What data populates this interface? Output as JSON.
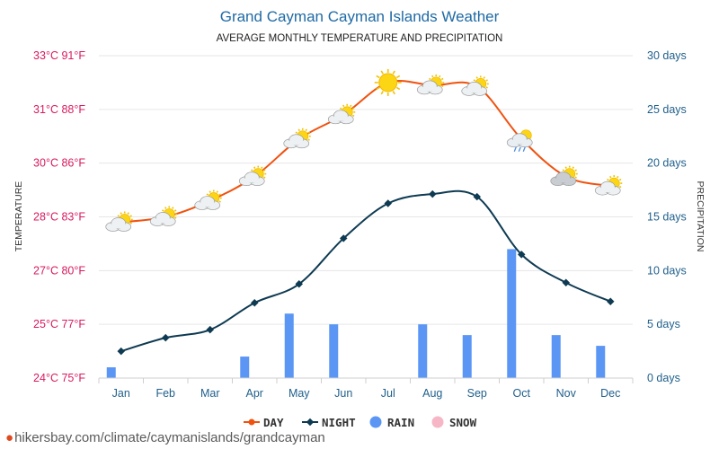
{
  "chart_data": {
    "type": "line",
    "title": "Grand Cayman Cayman Islands Weather",
    "subtitle": "AVERAGE MONTHLY TEMPERATURE AND PRECIPITATION",
    "categories": [
      "Jan",
      "Feb",
      "Mar",
      "Apr",
      "May",
      "Jun",
      "Jul",
      "Aug",
      "Sep",
      "Oct",
      "Nov",
      "Dec"
    ],
    "y_left": {
      "label": "TEMPERATURE",
      "ticks": [
        "24°C 75°F",
        "25°C 77°F",
        "27°C 80°F",
        "28°C 83°F",
        "30°C 86°F",
        "31°C 88°F",
        "33°C 91°F"
      ],
      "range_c": [
        24,
        33
      ]
    },
    "y_right": {
      "label": "PRECIPITATION",
      "ticks": [
        "0 days",
        "5 days",
        "10 days",
        "15 days",
        "20 days",
        "25 days",
        "30 days"
      ],
      "range": [
        0,
        30
      ]
    },
    "series": [
      {
        "name": "DAY",
        "color": "#f0520f",
        "values": [
          27.9,
          28.0,
          28.6,
          29.5,
          30.45,
          30.9,
          32.0,
          31.9,
          31.85,
          30.45,
          29.5,
          29.15
        ]
      },
      {
        "name": "NIGHT",
        "color": "#0e3a52",
        "values": [
          24.5,
          24.75,
          24.9,
          25.8,
          26.5,
          27.6,
          28.5,
          28.85,
          28.75,
          27.3,
          26.55,
          25.85
        ]
      },
      {
        "name": "RAIN",
        "color": "#5b96f5",
        "values": [
          1,
          0,
          0,
          2,
          6,
          5,
          0,
          5,
          4,
          12,
          4,
          3
        ]
      },
      {
        "name": "SNOW",
        "color": "#f7b6c6",
        "values": [
          0,
          0,
          0,
          0,
          0,
          0,
          0,
          0,
          0,
          0,
          0,
          0
        ]
      }
    ],
    "weather_icons": [
      "partly-cloudy",
      "partly-cloudy",
      "partly-cloudy",
      "partly-cloudy",
      "partly-cloudy",
      "partly-cloudy",
      "sunny",
      "partly-cloudy",
      "partly-cloudy",
      "rain-cloud",
      "partly-cloudy",
      "partly-cloudy"
    ],
    "grid": true,
    "legend": "bottom-center"
  },
  "footer": {
    "attribution": "hikersbay.com/climate/caymanislands/grandcayman"
  }
}
